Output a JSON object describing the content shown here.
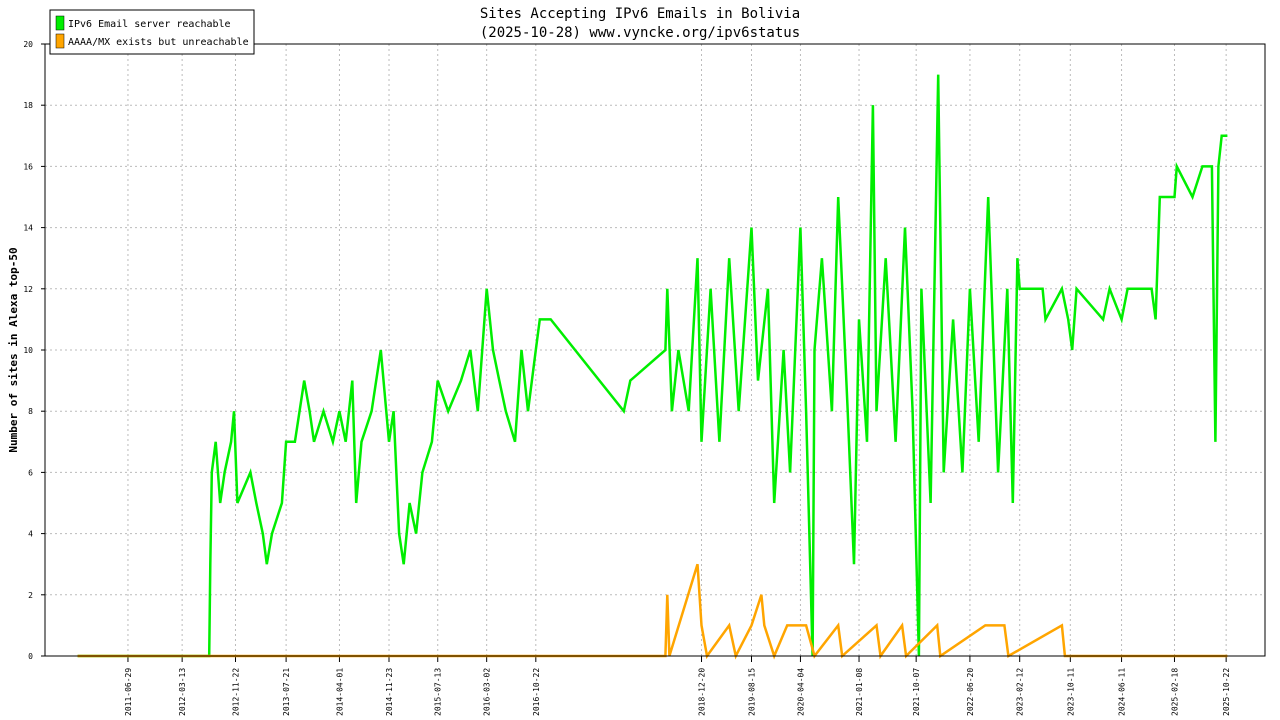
{
  "chart_data": {
    "type": "line",
    "title": "Sites Accepting IPv6 Emails in Bolivia",
    "subtitle": "(2025-10-28) www.vyncke.org/ipv6status",
    "y_label": "Number of sites in Alexa top-50",
    "xlim": [
      "2010-05-30",
      "2026-04-25"
    ],
    "xticks": [
      "2011-06-29",
      "2012-03-13",
      "2012-11-22",
      "2013-07-21",
      "2014-04-01",
      "2014-11-23",
      "2015-07-13",
      "2016-03-02",
      "2016-10-22",
      "2018-12-20",
      "2019-08-15",
      "2020-04-04",
      "2021-01-08",
      "2021-10-07",
      "2022-06-20",
      "2023-02-12",
      "2023-10-11",
      "2024-06-11",
      "2025-02-18",
      "2025-10-22"
    ],
    "ylim": [
      0,
      20
    ],
    "yticks": [
      0,
      2,
      4,
      6,
      8,
      10,
      12,
      14,
      16,
      18,
      20
    ],
    "grid": true,
    "legend": "top-left",
    "series": [
      {
        "name": "IPv6 Email server reachable",
        "color": "#00ee00",
        "x": [
          "2010-11-01",
          "2012-07-20",
          "2012-07-25",
          "2012-08-01",
          "2012-08-20",
          "2012-09-10",
          "2012-10-01",
          "2012-11-01",
          "2012-11-15",
          "2012-12-01",
          "2013-02-01",
          "2013-03-01",
          "2013-04-01",
          "2013-04-20",
          "2013-05-15",
          "2013-07-01",
          "2013-07-21",
          "2013-09-01",
          "2013-10-15",
          "2013-11-10",
          "2013-12-01",
          "2014-01-15",
          "2014-03-01",
          "2014-04-01",
          "2014-05-01",
          "2014-06-01",
          "2014-06-20",
          "2014-07-15",
          "2014-09-01",
          "2014-10-15",
          "2014-11-23",
          "2014-12-15",
          "2015-01-10",
          "2015-02-01",
          "2015-03-01",
          "2015-04-01",
          "2015-05-01",
          "2015-06-15",
          "2015-07-13",
          "2015-09-01",
          "2015-11-01",
          "2015-12-15",
          "2016-01-20",
          "2016-03-02",
          "2016-04-01",
          "2016-05-01",
          "2016-06-01",
          "2016-07-15",
          "2016-08-15",
          "2016-09-15",
          "2016-10-22",
          "2016-11-10",
          "2017-01-01",
          "2017-12-15",
          "2018-01-15",
          "2018-07-01",
          "2018-07-10",
          "2018-08-01",
          "2018-09-01",
          "2018-10-20",
          "2018-12-01",
          "2018-12-20",
          "2019-02-01",
          "2019-03-15",
          "2019-05-01",
          "2019-06-15",
          "2019-08-15",
          "2019-09-15",
          "2019-11-01",
          "2019-12-01",
          "2020-01-15",
          "2020-02-15",
          "2020-04-04",
          "2020-05-01",
          "2020-06-01",
          "2020-06-10",
          "2020-07-15",
          "2020-09-01",
          "2020-10-01",
          "2020-11-15",
          "2020-12-15",
          "2021-01-08",
          "2021-02-15",
          "2021-03-15",
          "2021-04-01",
          "2021-05-15",
          "2021-07-01",
          "2021-08-15",
          "2021-09-20",
          "2021-10-20",
          "2021-11-01",
          "2021-12-15",
          "2022-01-20",
          "2022-02-15",
          "2022-04-01",
          "2022-05-15",
          "2022-06-20",
          "2022-08-01",
          "2022-09-15",
          "2022-11-01",
          "2022-12-15",
          "2023-01-10",
          "2023-02-01",
          "2023-02-12",
          "2023-06-01",
          "2023-06-15",
          "2023-09-01",
          "2023-10-01",
          "2023-10-20",
          "2023-11-10",
          "2024-03-15",
          "2024-04-15",
          "2024-06-11",
          "2024-07-10",
          "2024-11-01",
          "2024-11-20",
          "2024-12-10",
          "2025-02-18",
          "2025-03-01",
          "2025-05-15",
          "2025-07-01",
          "2025-08-15",
          "2025-09-01",
          "2025-09-15",
          "2025-10-01",
          "2025-10-28"
        ],
        "values": [
          0,
          0,
          3,
          6,
          7,
          5,
          6,
          7,
          8,
          5,
          6,
          5,
          4,
          3,
          4,
          5,
          7,
          7,
          9,
          8,
          7,
          8,
          7,
          8,
          7,
          9,
          5,
          7,
          8,
          10,
          7,
          8,
          4,
          3,
          5,
          4,
          6,
          7,
          9,
          8,
          9,
          10,
          8,
          12,
          10,
          9,
          8,
          7,
          10,
          8,
          10,
          11,
          11,
          8,
          9,
          10,
          12,
          8,
          10,
          8,
          13,
          7,
          12,
          7,
          13,
          8,
          14,
          9,
          12,
          5,
          10,
          6,
          14,
          8,
          0,
          10,
          13,
          8,
          15,
          8,
          3,
          11,
          7,
          18,
          8,
          13,
          7,
          14,
          8,
          0,
          12,
          5,
          19,
          6,
          11,
          6,
          12,
          7,
          15,
          6,
          12,
          5,
          13,
          12,
          12,
          11,
          12,
          11,
          10,
          12,
          11,
          12,
          11,
          12,
          12,
          11,
          15,
          15,
          16,
          15,
          16,
          16,
          7,
          16,
          17,
          17
        ]
      },
      {
        "name": "AAAA/MX exists but unreachable",
        "color": "#ffa500",
        "x": [
          "2010-11-01",
          "2018-07-01",
          "2018-07-10",
          "2018-07-20",
          "2018-12-01",
          "2018-12-20",
          "2019-01-15",
          "2019-05-01",
          "2019-06-01",
          "2019-08-15",
          "2019-10-01",
          "2019-10-15",
          "2019-12-01",
          "2020-02-01",
          "2020-05-01",
          "2020-06-10",
          "2020-10-01",
          "2020-10-20",
          "2021-04-01",
          "2021-04-20",
          "2021-08-01",
          "2021-08-20",
          "2022-01-15",
          "2022-01-30",
          "2022-09-01",
          "2022-12-01",
          "2022-12-20",
          "2023-09-01",
          "2023-09-15",
          "2025-10-28"
        ],
        "values": [
          0,
          0,
          2,
          0,
          3,
          1,
          0,
          1,
          0,
          1,
          2,
          1,
          0,
          1,
          1,
          0,
          1,
          0,
          1,
          0,
          1,
          0,
          1,
          0,
          1,
          1,
          0,
          1,
          0,
          0
        ]
      }
    ]
  }
}
